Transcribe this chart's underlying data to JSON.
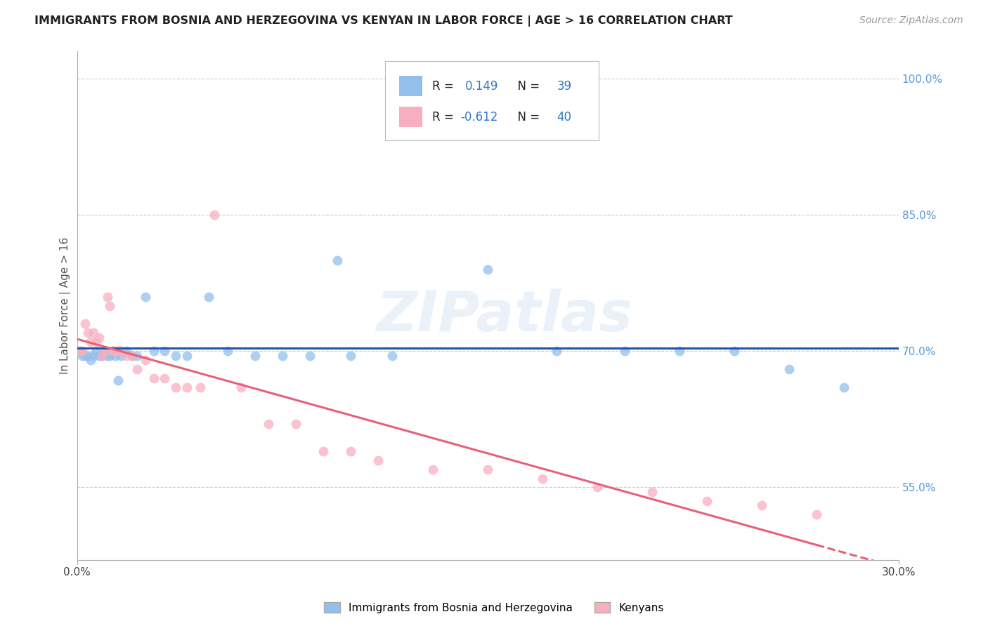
{
  "title": "IMMIGRANTS FROM BOSNIA AND HERZEGOVINA VS KENYAN IN LABOR FORCE | AGE > 16 CORRELATION CHART",
  "source": "Source: ZipAtlas.com",
  "ylabel": "In Labor Force | Age > 16",
  "xlim": [
    0.0,
    0.3
  ],
  "ylim": [
    0.47,
    1.03
  ],
  "x_tick_labels": [
    "0.0%",
    "30.0%"
  ],
  "x_tick_values": [
    0.0,
    0.3
  ],
  "y_tick_labels_right": [
    "55.0%",
    "70.0%",
    "85.0%",
    "100.0%"
  ],
  "y_tick_values_right": [
    0.55,
    0.7,
    0.85,
    1.0
  ],
  "grid_color": "#cccccc",
  "background_color": "#ffffff",
  "bosnia_color": "#92bfec",
  "kenyan_color": "#f7afc0",
  "bosnia_line_color": "#2255aa",
  "kenyan_line_color": "#e8607a",
  "bosnia_r": 0.149,
  "bosnia_n": 39,
  "kenyan_r": -0.612,
  "kenyan_n": 40,
  "watermark": "ZIPatlas",
  "legend_r_color": "#3377cc",
  "legend_n_color": "#3377cc",
  "bosnia_x": [
    0.001,
    0.002,
    0.003,
    0.004,
    0.005,
    0.006,
    0.007,
    0.008,
    0.009,
    0.01,
    0.011,
    0.012,
    0.013,
    0.014,
    0.015,
    0.016,
    0.018,
    0.02,
    0.022,
    0.025,
    0.028,
    0.032,
    0.036,
    0.04,
    0.048,
    0.055,
    0.065,
    0.075,
    0.085,
    0.095,
    0.1,
    0.115,
    0.15,
    0.175,
    0.2,
    0.22,
    0.24,
    0.26,
    0.28
  ],
  "bosnia_y": [
    0.7,
    0.695,
    0.695,
    0.695,
    0.69,
    0.695,
    0.7,
    0.695,
    0.695,
    0.7,
    0.695,
    0.695,
    0.7,
    0.695,
    0.668,
    0.695,
    0.7,
    0.695,
    0.695,
    0.76,
    0.7,
    0.7,
    0.695,
    0.695,
    0.76,
    0.7,
    0.695,
    0.695,
    0.695,
    0.8,
    0.695,
    0.695,
    0.79,
    0.7,
    0.7,
    0.7,
    0.7,
    0.68,
    0.66
  ],
  "kenyan_x": [
    0.001,
    0.002,
    0.003,
    0.004,
    0.005,
    0.006,
    0.007,
    0.008,
    0.009,
    0.01,
    0.011,
    0.012,
    0.013,
    0.014,
    0.015,
    0.016,
    0.018,
    0.02,
    0.022,
    0.025,
    0.028,
    0.032,
    0.036,
    0.04,
    0.045,
    0.05,
    0.06,
    0.07,
    0.08,
    0.09,
    0.1,
    0.11,
    0.13,
    0.15,
    0.17,
    0.19,
    0.21,
    0.23,
    0.25,
    0.27
  ],
  "kenyan_y": [
    0.7,
    0.7,
    0.73,
    0.72,
    0.71,
    0.72,
    0.71,
    0.715,
    0.695,
    0.7,
    0.76,
    0.75,
    0.7,
    0.7,
    0.7,
    0.7,
    0.695,
    0.695,
    0.68,
    0.69,
    0.67,
    0.67,
    0.66,
    0.66,
    0.66,
    0.85,
    0.66,
    0.62,
    0.62,
    0.59,
    0.59,
    0.58,
    0.57,
    0.57,
    0.56,
    0.55,
    0.545,
    0.535,
    0.53,
    0.52
  ]
}
